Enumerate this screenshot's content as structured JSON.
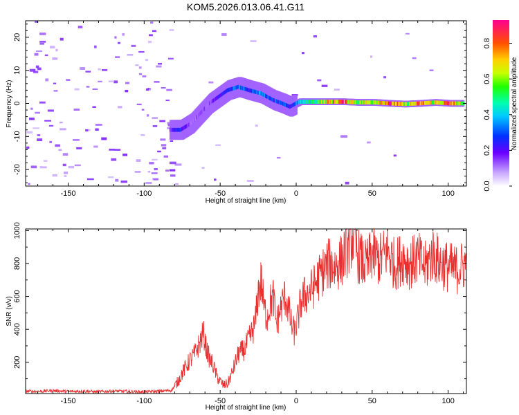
{
  "chart_data": [
    {
      "type": "heatmap",
      "title": "KOM5.2026.013.06.41.G11",
      "xlabel": "Height of straight line (km)",
      "ylabel": "Frequency (Hz)",
      "xlim": [
        -178,
        112
      ],
      "ylim": [
        -25,
        25
      ],
      "x_ticks": [
        -150,
        -100,
        -50,
        0,
        50,
        100
      ],
      "y_ticks": [
        -20,
        -10,
        0,
        10,
        20
      ],
      "colorbar": {
        "label": "Normalized spectral amplitude",
        "range": [
          0,
          0.93
        ],
        "ticks": [
          0.0,
          0.2,
          0.4,
          0.6,
          0.8
        ]
      },
      "ridge_points": [
        {
          "x": -82,
          "y": -8,
          "amp": 0.18
        },
        {
          "x": -75,
          "y": -8,
          "amp": 0.28
        },
        {
          "x": -68,
          "y": -6,
          "amp": 0.12
        },
        {
          "x": -62,
          "y": -3,
          "amp": 0.15
        },
        {
          "x": -56,
          "y": 0,
          "amp": 0.14
        },
        {
          "x": -50,
          "y": 2,
          "amp": 0.22
        },
        {
          "x": -44,
          "y": 4,
          "amp": 0.26
        },
        {
          "x": -37,
          "y": 5,
          "amp": 0.34
        },
        {
          "x": -30,
          "y": 4,
          "amp": 0.28
        },
        {
          "x": -22,
          "y": 3,
          "amp": 0.36
        },
        {
          "x": -14,
          "y": 1,
          "amp": 0.3
        },
        {
          "x": -8,
          "y": 0,
          "amp": 0.34
        },
        {
          "x": -3,
          "y": -1,
          "amp": 0.22
        },
        {
          "x": 3,
          "y": 0.5,
          "amp": 0.42
        },
        {
          "x": 12,
          "y": 0.5,
          "amp": 0.5
        },
        {
          "x": 22,
          "y": 0.5,
          "amp": 0.72
        },
        {
          "x": 32,
          "y": 0.5,
          "amp": 0.84
        },
        {
          "x": 42,
          "y": 0.3,
          "amp": 0.62
        },
        {
          "x": 52,
          "y": 0.3,
          "amp": 0.7
        },
        {
          "x": 62,
          "y": 0,
          "amp": 0.88
        },
        {
          "x": 72,
          "y": -0.2,
          "amp": 0.62
        },
        {
          "x": 82,
          "y": 0,
          "amp": 0.76
        },
        {
          "x": 92,
          "y": 0.3,
          "amp": 0.68
        },
        {
          "x": 102,
          "y": 0,
          "amp": 0.82
        },
        {
          "x": 110,
          "y": 0,
          "amp": 0.6
        }
      ]
    },
    {
      "type": "line",
      "xlabel": "Height of straight line (km)",
      "ylabel": "SNR (v/v)",
      "xlim": [
        -178,
        112
      ],
      "ylim": [
        10,
        1010
      ],
      "x_ticks": [
        -150,
        -100,
        -50,
        0,
        50,
        100
      ],
      "y_ticks": [
        200,
        400,
        600,
        800,
        1000
      ],
      "line_color": "#e83030",
      "series": [
        {
          "name": "SNR",
          "x": [
            -178,
            -170,
            -160,
            -150,
            -140,
            -130,
            -120,
            -110,
            -100,
            -90,
            -82,
            -78,
            -74,
            -70,
            -66,
            -63,
            -61,
            -59,
            -57,
            -55,
            -52,
            -48,
            -45,
            -42,
            -38,
            -34,
            -30,
            -27,
            -25,
            -23,
            -21,
            -19,
            -17,
            -15,
            -13,
            -11,
            -9,
            -7,
            -5,
            -3,
            -1,
            1,
            3,
            5,
            8,
            11,
            14,
            18,
            22,
            26,
            30,
            33,
            36,
            38,
            40,
            43,
            46,
            50,
            55,
            60,
            65,
            70,
            75,
            80,
            85,
            90,
            95,
            100,
            105,
            112
          ],
          "y": [
            25,
            22,
            28,
            22,
            25,
            20,
            26,
            22,
            20,
            24,
            30,
            80,
            150,
            210,
            260,
            330,
            380,
            280,
            220,
            190,
            110,
            60,
            70,
            140,
            250,
            280,
            360,
            430,
            620,
            700,
            520,
            480,
            560,
            600,
            430,
            500,
            560,
            600,
            520,
            420,
            380,
            460,
            560,
            600,
            620,
            650,
            700,
            760,
            800,
            780,
            820,
            880,
            940,
            980,
            860,
            820,
            780,
            860,
            820,
            880,
            790,
            840,
            800,
            830,
            780,
            860,
            800,
            780,
            760,
            800
          ]
        }
      ]
    }
  ]
}
